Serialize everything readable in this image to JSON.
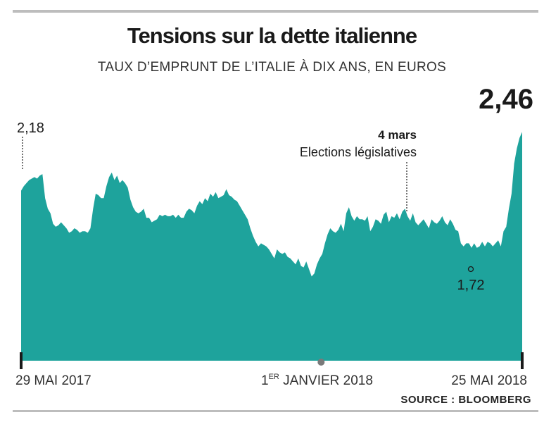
{
  "title": "Tensions sur la dette italienne",
  "subtitle": "TAUX D’EMPRUNT DE L’ITALIE À DIX ANS, EN EUROS",
  "source": "SOURCE : BLOOMBERG",
  "colors": {
    "area": "#1ea39c",
    "text": "#1a1a1a",
    "rule": "#bdbdbd"
  },
  "chart_data": {
    "type": "area",
    "title": "Tensions sur la dette italienne",
    "ylabel": "",
    "xlabel": "",
    "ylim": [
      0.95,
      2.55
    ],
    "x_start": "29 MAI 2017",
    "x_end": "25 MAI 2018",
    "values": [
      2.07,
      2.1,
      2.12,
      2.14,
      2.15,
      2.16,
      2.15,
      2.17,
      2.18,
      2.02,
      1.95,
      1.92,
      1.85,
      1.83,
      1.84,
      1.86,
      1.84,
      1.82,
      1.79,
      1.8,
      1.82,
      1.81,
      1.79,
      1.8,
      1.8,
      1.79,
      1.82,
      1.95,
      2.05,
      2.04,
      2.02,
      2.02,
      2.1,
      2.16,
      2.19,
      2.14,
      2.17,
      2.12,
      2.14,
      2.12,
      2.09,
      2.01,
      1.96,
      1.93,
      1.92,
      1.93,
      1.95,
      1.89,
      1.89,
      1.86,
      1.87,
      1.88,
      1.91,
      1.9,
      1.91,
      1.9,
      1.9,
      1.91,
      1.89,
      1.91,
      1.89,
      1.89,
      1.93,
      1.95,
      1.94,
      1.92,
      1.97,
      2.0,
      1.98,
      2.02,
      2.0,
      2.05,
      2.03,
      2.06,
      2.02,
      2.03,
      2.04,
      2.08,
      2.04,
      2.03,
      2.01,
      2.0,
      1.97,
      1.94,
      1.91,
      1.88,
      1.82,
      1.77,
      1.73,
      1.7,
      1.72,
      1.71,
      1.7,
      1.68,
      1.65,
      1.62,
      1.68,
      1.66,
      1.65,
      1.66,
      1.63,
      1.62,
      1.6,
      1.58,
      1.62,
      1.57,
      1.56,
      1.6,
      1.55,
      1.5,
      1.52,
      1.58,
      1.62,
      1.65,
      1.72,
      1.78,
      1.82,
      1.8,
      1.79,
      1.81,
      1.85,
      1.8,
      1.92,
      1.96,
      1.9,
      1.87,
      1.9,
      1.88,
      1.88,
      1.87,
      1.9,
      1.8,
      1.83,
      1.88,
      1.87,
      1.85,
      1.91,
      1.93,
      1.86,
      1.9,
      1.89,
      1.92,
      1.88,
      1.93,
      1.95,
      1.9,
      1.87,
      1.92,
      1.86,
      1.84,
      1.86,
      1.88,
      1.85,
      1.82,
      1.88,
      1.86,
      1.85,
      1.87,
      1.9,
      1.86,
      1.84,
      1.88,
      1.85,
      1.81,
      1.8,
      1.72,
      1.7,
      1.72,
      1.72,
      1.69,
      1.72,
      1.69,
      1.7,
      1.73,
      1.7,
      1.73,
      1.72,
      1.7,
      1.72,
      1.74,
      1.7,
      1.8,
      1.83,
      1.95,
      2.05,
      2.25,
      2.35,
      2.42,
      2.46
    ],
    "annotations": [
      {
        "label": "2,18",
        "value": 2.18
      },
      {
        "label": "1,72",
        "value": 1.72
      },
      {
        "label": "2,46",
        "value": 2.46
      },
      {
        "label_date": "4 mars",
        "label_text": "Elections législatives"
      }
    ],
    "x_ticks": [
      {
        "label_main": "29 MAI 2017",
        "label_sup": "",
        "label_rest": "",
        "position": 0.0
      },
      {
        "label_main": "1",
        "label_sup": "ER",
        "label_rest": " JANVIER 2018",
        "position": 0.5987
      },
      {
        "label_main": "25 MAI 2018",
        "label_sup": "",
        "label_rest": "",
        "position": 1.0
      }
    ],
    "grid": false,
    "legend": "none"
  }
}
